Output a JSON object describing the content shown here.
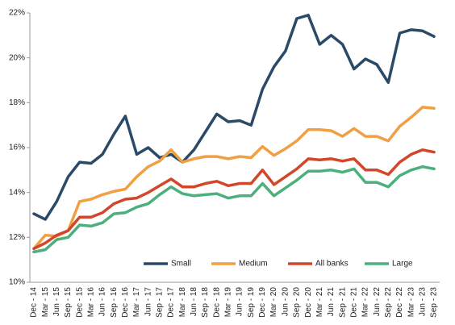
{
  "chart_data": {
    "type": "line",
    "categories": [
      "Dec - 14",
      "Mar - 15",
      "Jun - 15",
      "Sep - 15",
      "Dec - 15",
      "Mar - 16",
      "Jun - 16",
      "Sep - 16",
      "Dec - 16",
      "Mar - 17",
      "Jun - 17",
      "Sep - 17",
      "Dec - 17",
      "Mar - 18",
      "Jun - 18",
      "Sep - 18",
      "Dec - 18",
      "Mar - 19",
      "Jun - 19",
      "Sep - 19",
      "Dec - 19",
      "Mar - 20",
      "Jun - 20",
      "Sep - 20",
      "Dec - 20",
      "Mar - 21",
      "Jun - 21",
      "Sep - 21",
      "Dec - 21",
      "Mar - 22",
      "Jun - 22",
      "Sep - 22",
      "Dec - 22",
      "Mar - 23",
      "Jun - 23",
      "Sep - 23"
    ],
    "series": [
      {
        "name": "Small",
        "color": "#2a4a68",
        "values": [
          13.05,
          12.8,
          13.6,
          14.7,
          15.35,
          15.3,
          15.7,
          16.6,
          17.4,
          15.7,
          16.0,
          15.55,
          15.7,
          15.35,
          15.9,
          16.7,
          17.5,
          17.15,
          17.2,
          17.0,
          18.6,
          19.6,
          20.3,
          21.75,
          21.9,
          20.6,
          21.0,
          20.6,
          19.5,
          19.95,
          19.7,
          18.9,
          21.1,
          21.25,
          21.2,
          20.95
        ]
      },
      {
        "name": "Medium",
        "color": "#f0a042",
        "values": [
          11.5,
          12.1,
          12.05,
          12.3,
          13.6,
          13.7,
          13.9,
          14.05,
          14.15,
          14.7,
          15.15,
          15.4,
          15.9,
          15.35,
          15.5,
          15.6,
          15.6,
          15.5,
          15.6,
          15.55,
          16.05,
          15.65,
          15.95,
          16.3,
          16.8,
          16.8,
          16.75,
          16.5,
          16.85,
          16.5,
          16.5,
          16.3,
          16.95,
          17.35,
          17.8,
          17.75
        ]
      },
      {
        "name": "All banks",
        "color": "#d2462a",
        "values": [
          11.5,
          11.75,
          12.1,
          12.3,
          12.9,
          12.9,
          13.1,
          13.5,
          13.7,
          13.75,
          14.0,
          14.3,
          14.6,
          14.25,
          14.25,
          14.4,
          14.5,
          14.3,
          14.4,
          14.4,
          15.0,
          14.35,
          14.7,
          15.05,
          15.5,
          15.45,
          15.5,
          15.4,
          15.5,
          15.0,
          15.0,
          14.8,
          15.35,
          15.7,
          15.9,
          15.8
        ]
      },
      {
        "name": "Large",
        "color": "#4bb07c",
        "values": [
          11.35,
          11.45,
          11.9,
          12.0,
          12.55,
          12.5,
          12.65,
          13.05,
          13.1,
          13.35,
          13.5,
          13.9,
          14.25,
          13.95,
          13.85,
          13.9,
          13.95,
          13.75,
          13.85,
          13.85,
          14.4,
          13.85,
          14.2,
          14.55,
          14.95,
          14.95,
          15.0,
          14.9,
          15.05,
          14.45,
          14.45,
          14.25,
          14.75,
          15.0,
          15.15,
          15.05
        ]
      }
    ],
    "ylim": [
      10,
      22
    ],
    "yticks": [
      {
        "value": 10,
        "label": "10%"
      },
      {
        "value": 12,
        "label": "12%"
      },
      {
        "value": 14,
        "label": "14%"
      },
      {
        "value": 16,
        "label": "16%"
      },
      {
        "value": 18,
        "label": "18%"
      },
      {
        "value": 20,
        "label": "20%"
      },
      {
        "value": 22,
        "label": "22%"
      }
    ],
    "grid": false,
    "legend": "bottom"
  }
}
